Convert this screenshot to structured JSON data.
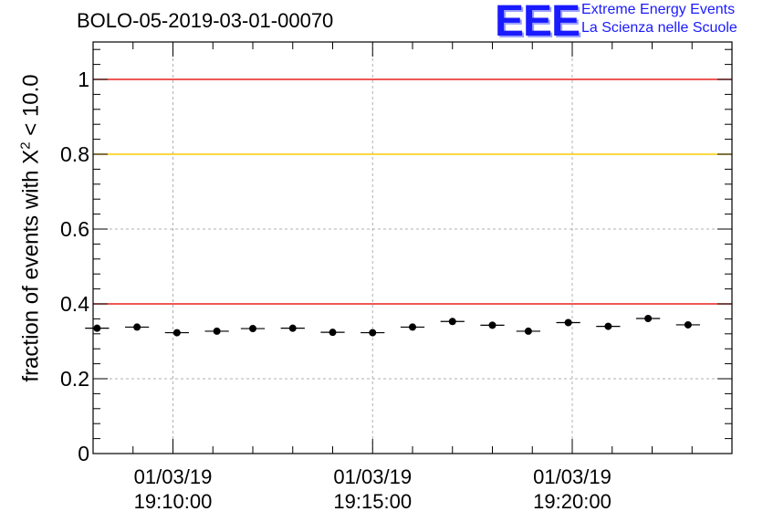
{
  "header": {
    "title": "BOLO-05-2019-03-01-00070",
    "logo_mark": "EEE",
    "logo_line1": "Extreme Energy Events",
    "logo_line2": "La Scienza nelle Scuole"
  },
  "chart_data": {
    "type": "scatter",
    "title": "BOLO-05-2019-03-01-00070",
    "xlabel": "",
    "ylabel_prefix": "fraction of events with ",
    "ylabel_symbol": "X",
    "ylabel_sup": "2",
    "ylabel_suffix": " < 10.0",
    "ylim": [
      0,
      1.1
    ],
    "x_unit": "minutes",
    "xlim": [
      -2.0,
      14.0
    ],
    "bin_half_width": 0.3,
    "x_ticks": [
      {
        "x": 0.0,
        "date": "01/03/19",
        "time": "19:10:00"
      },
      {
        "x": 5.0,
        "date": "01/03/19",
        "time": "19:15:00"
      },
      {
        "x": 10.0,
        "date": "01/03/19",
        "time": "19:20:00"
      }
    ],
    "y_ticks": [
      {
        "y": 0.0,
        "label": "0"
      },
      {
        "y": 0.2,
        "label": "0.2"
      },
      {
        "y": 0.4,
        "label": "0.4"
      },
      {
        "y": 0.6,
        "label": "0.6"
      },
      {
        "y": 0.8,
        "label": "0.8"
      },
      {
        "y": 1.0,
        "label": "1"
      }
    ],
    "reference_lines": [
      {
        "y": 1.0,
        "color": "#e8211f"
      },
      {
        "y": 0.8,
        "color": "#ffcc00"
      },
      {
        "y": 0.4,
        "color": "#e8211f"
      }
    ],
    "series": [
      {
        "name": "fraction",
        "color": "#000000",
        "x": [
          -1.9,
          -0.9,
          0.1,
          1.1,
          2.0,
          3.0,
          4.0,
          5.0,
          6.0,
          7.0,
          8.0,
          8.9,
          9.9,
          10.9,
          11.9,
          12.9
        ],
        "y": [
          0.335,
          0.338,
          0.323,
          0.327,
          0.334,
          0.335,
          0.324,
          0.323,
          0.338,
          0.353,
          0.343,
          0.327,
          0.35,
          0.34,
          0.361,
          0.344
        ]
      }
    ]
  }
}
